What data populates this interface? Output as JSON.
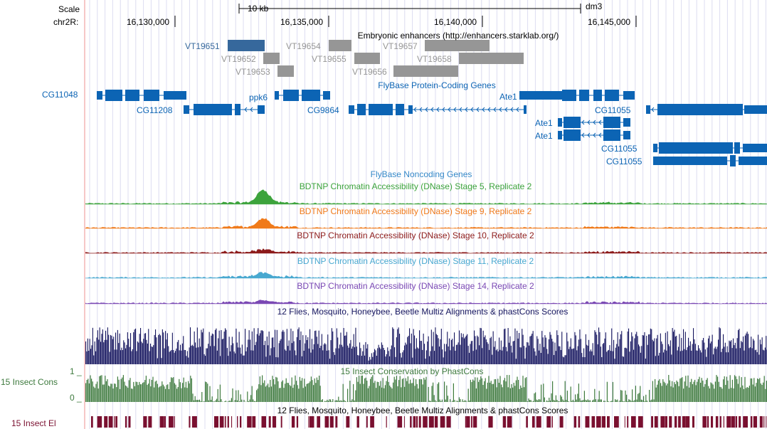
{
  "colors": {
    "gene_blue": "#0c64b4",
    "enhancer_gray": "#969696",
    "enhancer_selected": "#36689c",
    "stage5_green": "#3ca33c",
    "stage9_orange": "#f07a1a",
    "stage10_darkred": "#8c1a1a",
    "stage11_lightblue": "#48a8d0",
    "stage14_purple": "#7a48b4",
    "multiz_navy": "#14145e",
    "phastcons_green": "#3e7a3e",
    "elements_maroon": "#7a1030",
    "guide_line": "#dcdcf0"
  },
  "left_labels": {
    "scale": "Scale",
    "chrom": "chr2R:",
    "cg11048": "CG11048",
    "cons_track": "15 Insect Cons",
    "cons_max": "1 _",
    "cons_min": "0 _",
    "el_track": "15 Insect El"
  },
  "ruler": {
    "scale_label": "10 kb",
    "assembly": "dm3",
    "positions": [
      "16,130,000",
      "16,135,000",
      "16,140,000",
      "16,145,000"
    ]
  },
  "track_titles": {
    "enhancers": "Embryonic enhancers (http://enhancers.starklab.org/)",
    "protein_genes": "FlyBase Protein-Coding Genes",
    "noncoding_genes": "FlyBase Noncoding Genes",
    "dnase_s5": "BDTNP Chromatin Accessibility (DNase) Stage 5, Replicate 2",
    "dnase_s9": "BDTNP Chromatin Accessibility (DNase) Stage 9, Replicate 2",
    "dnase_s10": "BDTNP Chromatin Accessibility (DNase) Stage 10, Replicate 2",
    "dnase_s11": "BDTNP Chromatin Accessibility (DNase) Stage 11, Replicate 2",
    "dnase_s14": "BDTNP Chromatin Accessibility (DNase) Stage 14, Replicate 2",
    "multiz": "12 Flies, Mosquito, Honeybee, Beetle Multiz Alignments & phastCons Scores",
    "phastcons": "15 Insect Conservation by PhastCons",
    "multiz_bottom": "12 Flies, Mosquito, Honeybee, Beetle Multiz Alignments & phastCons Scores"
  },
  "enhancers": [
    "VT19651",
    "VT19652",
    "VT19653",
    "VT19654",
    "VT19655",
    "VT19656",
    "VT19657",
    "VT19658"
  ],
  "genes": {
    "ppk6": "ppk6",
    "cg11208": "CG11208",
    "cg9864": "CG9864",
    "ate1_a": "Ate1",
    "ate1_b": "Ate1",
    "ate1_c": "Ate1",
    "cg11055_a": "CG11055",
    "cg11055_b": "CG11055",
    "cg11055_c": "CG11055"
  }
}
